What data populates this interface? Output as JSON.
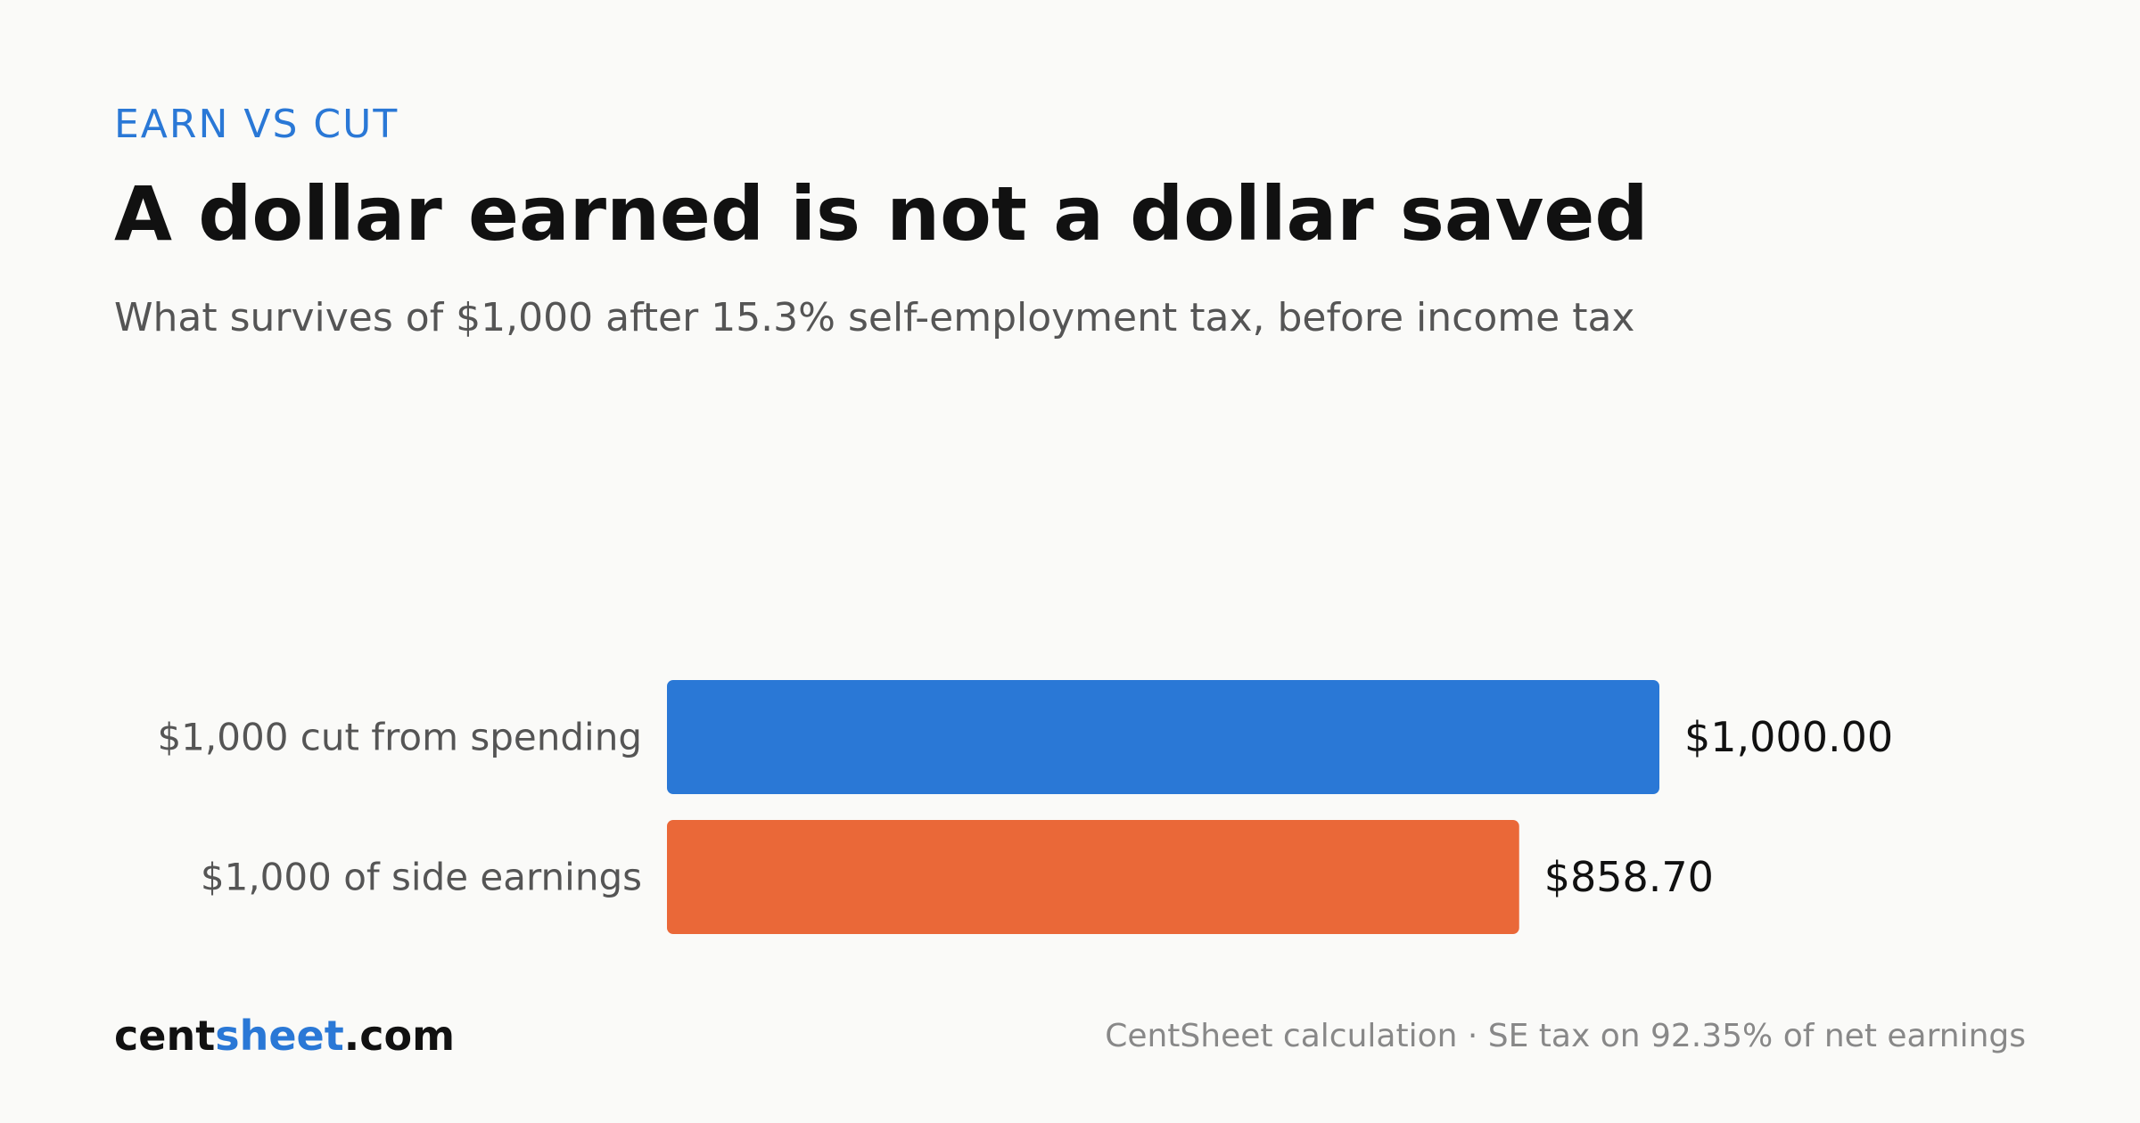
{
  "header": {
    "eyebrow": "EARN VS CUT",
    "title": "A dollar earned is not a dollar saved",
    "subtitle": "What survives of $1,000 after 15.3% self-employment tax, before income tax"
  },
  "footer": {
    "brand_prefix": "cent",
    "brand_accent": "sheet",
    "brand_suffix": ".com",
    "source": "CentSheet calculation · SE tax on 92.35% of net earnings"
  },
  "colors": {
    "accent": "#2a78d6",
    "orange": "#ea6838"
  },
  "chart_data": {
    "type": "bar",
    "orientation": "horizontal",
    "categories": [
      "$1,000 cut from spending",
      "$1,000 of side earnings"
    ],
    "values": [
      1000.0,
      858.7
    ],
    "value_labels": [
      "$1,000.00",
      "$858.70"
    ],
    "colors": [
      "#2a78d6",
      "#ea6838"
    ],
    "xlim": [
      0,
      1000
    ],
    "grid": false,
    "title": "A dollar earned is not a dollar saved"
  }
}
